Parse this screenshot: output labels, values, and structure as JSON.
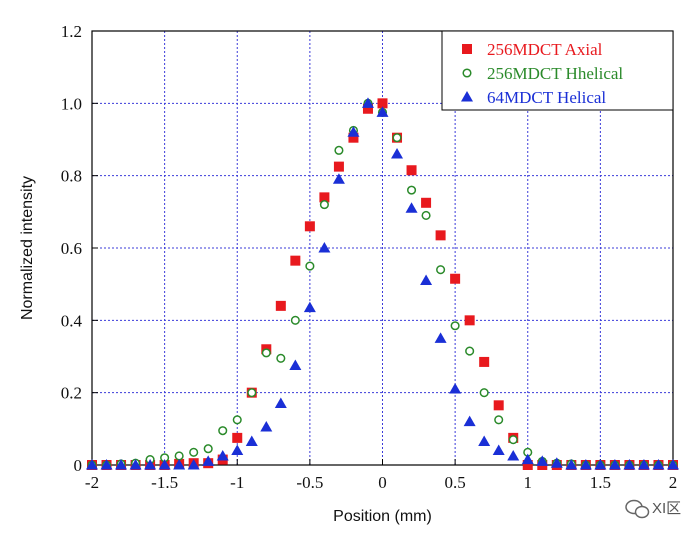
{
  "chart_data": {
    "type": "scatter",
    "xlabel": "Position (mm)",
    "ylabel": "Normalized intensity",
    "xlim": [
      -2,
      2
    ],
    "ylim": [
      0,
      1.2
    ],
    "xticks": [
      -2,
      -1.5,
      -1,
      -0.5,
      0,
      0.5,
      1,
      1.5,
      2
    ],
    "xtick_labels": [
      "-2",
      "-1.5",
      "-1",
      "-0.5",
      "0",
      "0.5",
      "1",
      "1.5",
      "2"
    ],
    "yticks": [
      0,
      0.2,
      0.4,
      0.6,
      0.8,
      1.0,
      1.2
    ],
    "ytick_labels": [
      "0",
      "0.2",
      "0.4",
      "0.6",
      "0.8",
      "1.0",
      "1.2"
    ],
    "grid": true,
    "legend_position": "top-right",
    "series": [
      {
        "name": "256MDCT Axial",
        "marker": "filled-square",
        "color": "#e8191e",
        "x": [
          -2.0,
          -1.9,
          -1.8,
          -1.7,
          -1.6,
          -1.5,
          -1.4,
          -1.3,
          -1.2,
          -1.1,
          -1.0,
          -0.9,
          -0.8,
          -0.7,
          -0.6,
          -0.5,
          -0.4,
          -0.3,
          -0.2,
          -0.1,
          0.0,
          0.1,
          0.2,
          0.3,
          0.4,
          0.5,
          0.6,
          0.7,
          0.8,
          0.9,
          1.0,
          1.1,
          1.2,
          1.3,
          1.4,
          1.5,
          1.6,
          1.7,
          1.8,
          1.9,
          2.0
        ],
        "y": [
          0,
          0,
          0,
          0,
          0,
          0,
          0.003,
          0.005,
          0.005,
          0.015,
          0.075,
          0.2,
          0.32,
          0.44,
          0.565,
          0.66,
          0.74,
          0.825,
          0.905,
          0.985,
          1.0,
          0.905,
          0.815,
          0.725,
          0.635,
          0.515,
          0.4,
          0.285,
          0.165,
          0.075,
          0,
          0,
          0,
          0,
          0,
          0,
          0,
          0,
          0,
          0,
          0
        ]
      },
      {
        "name": "256MDCT Hhelical",
        "marker": "open-circle",
        "color": "#2a8a2a",
        "x": [
          -2.0,
          -1.9,
          -1.8,
          -1.7,
          -1.6,
          -1.5,
          -1.4,
          -1.3,
          -1.2,
          -1.1,
          -1.0,
          -0.9,
          -0.8,
          -0.7,
          -0.6,
          -0.5,
          -0.4,
          -0.3,
          -0.2,
          -0.1,
          0.0,
          0.1,
          0.2,
          0.3,
          0.4,
          0.5,
          0.6,
          0.7,
          0.8,
          0.9,
          1.0,
          1.1,
          1.2,
          1.3,
          1.4,
          1.5,
          1.6,
          1.7,
          1.8,
          1.9,
          2.0
        ],
        "y": [
          0,
          0,
          0.003,
          0.005,
          0.015,
          0.02,
          0.025,
          0.035,
          0.045,
          0.095,
          0.125,
          0.2,
          0.31,
          0.295,
          0.4,
          0.55,
          0.72,
          0.87,
          0.925,
          1.0,
          0.975,
          0.905,
          0.76,
          0.69,
          0.54,
          0.385,
          0.315,
          0.2,
          0.125,
          0.07,
          0.035,
          0.01,
          0.005,
          0.003,
          0,
          0,
          0,
          0,
          0,
          0,
          0
        ]
      },
      {
        "name": "64MDCT Helical",
        "marker": "filled-triangle",
        "color": "#1a2fd6",
        "x": [
          -2.0,
          -1.9,
          -1.8,
          -1.7,
          -1.6,
          -1.5,
          -1.4,
          -1.3,
          -1.2,
          -1.1,
          -1.0,
          -0.9,
          -0.8,
          -0.7,
          -0.6,
          -0.5,
          -0.4,
          -0.3,
          -0.2,
          -0.1,
          0.0,
          0.1,
          0.2,
          0.3,
          0.4,
          0.5,
          0.6,
          0.7,
          0.8,
          0.9,
          1.0,
          1.1,
          1.2,
          1.3,
          1.4,
          1.5,
          1.6,
          1.7,
          1.8,
          1.9,
          2.0
        ],
        "y": [
          0,
          0,
          0,
          0,
          0,
          0,
          0,
          0,
          0.01,
          0.025,
          0.04,
          0.065,
          0.105,
          0.17,
          0.275,
          0.435,
          0.6,
          0.79,
          0.92,
          1.0,
          0.975,
          0.86,
          0.71,
          0.51,
          0.35,
          0.21,
          0.12,
          0.065,
          0.04,
          0.025,
          0.015,
          0.01,
          0.005,
          0,
          0,
          0,
          0,
          0,
          0,
          0,
          0
        ]
      }
    ]
  },
  "watermark": {
    "icon": "wechat-icon",
    "text": "XI区"
  }
}
